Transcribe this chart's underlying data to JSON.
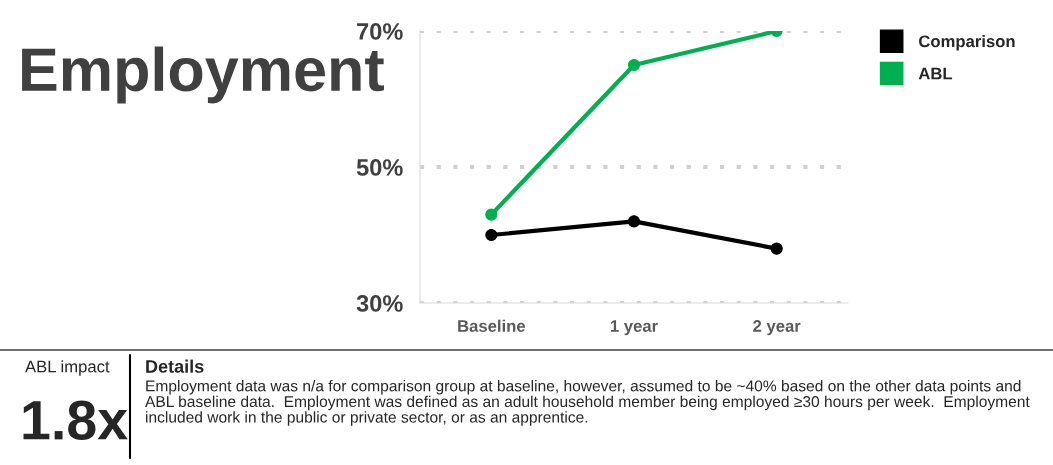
{
  "chart_data": {
    "type": "line",
    "title": "Employment",
    "categories": [
      "Baseline",
      "1 year",
      "2 year"
    ],
    "series": [
      {
        "name": "Comparison",
        "color": "#000000",
        "values": [
          40,
          42,
          38
        ]
      },
      {
        "name": "ABL",
        "color": "#00b050",
        "values": [
          43,
          65,
          70
        ]
      }
    ],
    "ylim": [
      30,
      70
    ],
    "yticks": [
      {
        "value": 30,
        "label": "30%"
      },
      {
        "value": 50,
        "label": "50%"
      },
      {
        "value": 70,
        "label": "70%"
      }
    ],
    "grid": "y",
    "legend": "top right",
    "marker": "circle",
    "annotations": [
      "ABL impact",
      "1.8x",
      "Details",
      "Employment data was n/a for comparison group at baseline, however, assumed to be ~40% based on the other data points and ABL baseline data.  Employment was defined as an adult household member being employed ≥30 hours per week.  Employment included work in the public or private sector, or as an apprentice."
    ]
  }
}
